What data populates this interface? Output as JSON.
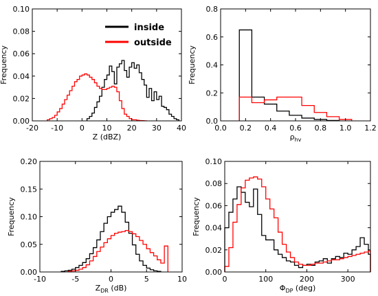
{
  "colors": {
    "inside": "#000000",
    "outside": "#ff0000"
  },
  "chart_data": [
    {
      "type": "histogram",
      "xlabel": "Z (dBZ)",
      "ylabel": "Frequency",
      "xlim": [
        -20,
        40
      ],
      "ylim": [
        0,
        0.1
      ],
      "xticks": [
        -20,
        -10,
        0,
        10,
        20,
        30,
        40
      ],
      "yticks": [
        0.0,
        0.02,
        0.04,
        0.06,
        0.08,
        0.1
      ],
      "xtick_labels": [
        "-20",
        "-10",
        "0",
        "10",
        "20",
        "30",
        "40"
      ],
      "ytick_labels": [
        "0.00",
        "0.02",
        "0.04",
        "0.06",
        "0.08",
        "0.10"
      ],
      "legend": {
        "position": "top-right",
        "entries": [
          {
            "name": "inside",
            "color": "#000000"
          },
          {
            "name": "outside",
            "color": "#ff0000"
          }
        ]
      },
      "series": [
        {
          "name": "inside",
          "color": "#000000",
          "bin_edges": [
            2,
            3,
            4,
            5,
            6,
            7,
            8,
            9,
            10,
            11,
            12,
            13,
            14,
            15,
            16,
            17,
            18,
            19,
            20,
            21,
            22,
            23,
            24,
            25,
            26,
            27,
            28,
            29,
            30,
            31,
            32,
            33,
            34,
            35,
            36,
            37,
            38,
            39
          ],
          "values": [
            0.002,
            0.004,
            0.007,
            0.012,
            0.017,
            0.022,
            0.03,
            0.037,
            0.041,
            0.049,
            0.044,
            0.033,
            0.048,
            0.051,
            0.054,
            0.045,
            0.039,
            0.048,
            0.052,
            0.047,
            0.05,
            0.043,
            0.037,
            0.032,
            0.021,
            0.029,
            0.018,
            0.026,
            0.019,
            0.022,
            0.013,
            0.012,
            0.01,
            0.006,
            0.004,
            0.002,
            0.001
          ]
        },
        {
          "name": "outside",
          "color": "#ff0000",
          "bin_edges": [
            -14,
            -13,
            -12,
            -11,
            -10,
            -9,
            -8,
            -7,
            -6,
            -5,
            -4,
            -3,
            -2,
            -1,
            0,
            1,
            2,
            3,
            4,
            5,
            6,
            7,
            8,
            9,
            10,
            11,
            12,
            13,
            14,
            15,
            16,
            17,
            18,
            19,
            20,
            21,
            22,
            23,
            24,
            25,
            26
          ],
          "values": [
            0.001,
            0.002,
            0.003,
            0.005,
            0.008,
            0.011,
            0.015,
            0.019,
            0.023,
            0.027,
            0.031,
            0.035,
            0.037,
            0.04,
            0.041,
            0.042,
            0.041,
            0.039,
            0.037,
            0.034,
            0.031,
            0.029,
            0.028,
            0.028,
            0.029,
            0.03,
            0.031,
            0.03,
            0.026,
            0.018,
            0.011,
            0.006,
            0.004,
            0.002,
            0.001,
            0.001,
            0.0005,
            0.0003,
            0.0002,
            0.0001
          ]
        }
      ]
    },
    {
      "type": "histogram",
      "xlabel": "ρhv",
      "xlabel_main": "ρ",
      "xlabel_sub": "hv",
      "ylabel": "Frequency",
      "xlim": [
        0.0,
        1.2
      ],
      "ylim": [
        0,
        0.8
      ],
      "xticks": [
        0.0,
        0.2,
        0.4,
        0.6,
        0.8,
        1.0,
        1.2
      ],
      "yticks": [
        0.0,
        0.2,
        0.4,
        0.6,
        0.8
      ],
      "xtick_labels": [
        "0.0",
        "0.2",
        "0.4",
        "0.6",
        "0.8",
        "1.0",
        "1.2"
      ],
      "ytick_labels": [
        "0.0",
        "0.2",
        "0.4",
        "0.6",
        "0.8"
      ],
      "series": [
        {
          "name": "inside",
          "color": "#000000",
          "bin_edges": [
            0.15,
            0.25,
            0.35,
            0.45,
            0.55,
            0.65,
            0.75,
            0.85,
            0.95
          ],
          "values": [
            0.65,
            0.17,
            0.12,
            0.07,
            0.04,
            0.02,
            0.01,
            0.003
          ]
        },
        {
          "name": "outside",
          "color": "#ff0000",
          "bin_edges": [
            0.15,
            0.25,
            0.35,
            0.45,
            0.55,
            0.65,
            0.75,
            0.85,
            0.95,
            1.05
          ],
          "values": [
            0.17,
            0.13,
            0.15,
            0.17,
            0.17,
            0.11,
            0.06,
            0.03,
            0.01
          ]
        }
      ]
    },
    {
      "type": "histogram",
      "xlabel": "ZDR (dB)",
      "xlabel_main": "Z",
      "xlabel_sub": "DR",
      "xlabel_tail": " (dB)",
      "ylabel": "Frequency",
      "xlim": [
        -10,
        10
      ],
      "ylim": [
        0,
        0.2
      ],
      "xticks": [
        -10,
        -5,
        0,
        5,
        10
      ],
      "yticks": [
        0.0,
        0.05,
        0.1,
        0.15,
        0.2
      ],
      "xtick_labels": [
        "-10",
        "-5",
        "0",
        "5",
        "10"
      ],
      "ytick_labels": [
        "0.00",
        "0.05",
        "0.10",
        "0.15",
        "0.20"
      ],
      "series": [
        {
          "name": "inside",
          "color": "#000000",
          "bin_edges": [
            -7,
            -6.5,
            -6,
            -5.5,
            -5,
            -4.5,
            -4,
            -3.5,
            -3,
            -2.5,
            -2,
            -1.5,
            -1,
            -0.5,
            0,
            0.5,
            1,
            1.5,
            2,
            2.5,
            3,
            3.5,
            4,
            4.5,
            5,
            5.5,
            6,
            6.5,
            7
          ],
          "values": [
            0.001,
            0.002,
            0.003,
            0.005,
            0.008,
            0.012,
            0.017,
            0.024,
            0.033,
            0.044,
            0.058,
            0.073,
            0.088,
            0.1,
            0.108,
            0.113,
            0.119,
            0.108,
            0.09,
            0.07,
            0.049,
            0.032,
            0.02,
            0.012,
            0.007,
            0.004,
            0.002,
            0.001
          ]
        },
        {
          "name": "outside",
          "color": "#ff0000",
          "bin_edges": [
            -6,
            -5.5,
            -5,
            -4.5,
            -4,
            -3.5,
            -3,
            -2.5,
            -2,
            -1.5,
            -1,
            -0.5,
            0,
            0.5,
            1,
            1.5,
            2,
            2.5,
            3,
            3.5,
            4,
            4.5,
            5,
            5.5,
            6,
            6.5,
            7,
            7.5,
            8
          ],
          "values": [
            0.001,
            0.002,
            0.003,
            0.005,
            0.008,
            0.013,
            0.02,
            0.028,
            0.037,
            0.045,
            0.053,
            0.06,
            0.066,
            0.07,
            0.072,
            0.073,
            0.075,
            0.073,
            0.069,
            0.064,
            0.057,
            0.05,
            0.042,
            0.035,
            0.029,
            0.022,
            0.016,
            0.047
          ]
        }
      ]
    },
    {
      "type": "histogram",
      "xlabel": "ΦDP (deg)",
      "xlabel_main": "Φ",
      "xlabel_sub": "DP",
      "xlabel_tail": " (deg)",
      "ylabel": "Frequency",
      "xlim": [
        0,
        355
      ],
      "ylim": [
        0,
        0.1
      ],
      "xticks": [
        0,
        100,
        200,
        300
      ],
      "yticks": [
        0.0,
        0.02,
        0.04,
        0.06,
        0.08,
        0.1
      ],
      "xtick_labels": [
        "0",
        "100",
        "200",
        "300"
      ],
      "ytick_labels": [
        "0.00",
        "0.02",
        "0.04",
        "0.06",
        "0.08",
        "0.10"
      ],
      "series": [
        {
          "name": "inside",
          "color": "#000000",
          "bin_edges": [
            0,
            10,
            20,
            30,
            40,
            50,
            60,
            70,
            80,
            90,
            100,
            110,
            120,
            130,
            140,
            150,
            160,
            170,
            180,
            190,
            200,
            210,
            220,
            230,
            240,
            250,
            260,
            270,
            280,
            290,
            300,
            310,
            320,
            330,
            340,
            350,
            355
          ],
          "values": [
            0.04,
            0.054,
            0.066,
            0.077,
            0.072,
            0.063,
            0.059,
            0.075,
            0.052,
            0.033,
            0.029,
            0.029,
            0.02,
            0.016,
            0.013,
            0.01,
            0.009,
            0.006,
            0.004,
            0.006,
            0.007,
            0.006,
            0.009,
            0.01,
            0.012,
            0.008,
            0.012,
            0.014,
            0.013,
            0.017,
            0.016,
            0.02,
            0.023,
            0.031,
            0.025,
            0.016
          ]
        },
        {
          "name": "outside",
          "color": "#ff0000",
          "bin_edges": [
            0,
            10,
            20,
            30,
            40,
            50,
            60,
            70,
            80,
            90,
            100,
            110,
            120,
            130,
            140,
            150,
            160,
            170,
            180,
            190,
            200,
            210,
            220,
            230,
            240,
            250,
            260,
            270,
            280,
            290,
            300,
            310,
            320,
            330,
            340,
            350,
            355
          ],
          "values": [
            0.005,
            0.022,
            0.045,
            0.061,
            0.076,
            0.083,
            0.085,
            0.086,
            0.084,
            0.077,
            0.066,
            0.057,
            0.049,
            0.036,
            0.025,
            0.018,
            0.013,
            0.009,
            0.007,
            0.006,
            0.006,
            0.007,
            0.008,
            0.008,
            0.009,
            0.01,
            0.011,
            0.011,
            0.012,
            0.013,
            0.014,
            0.015,
            0.016,
            0.017,
            0.018,
            0.019
          ]
        }
      ]
    }
  ]
}
